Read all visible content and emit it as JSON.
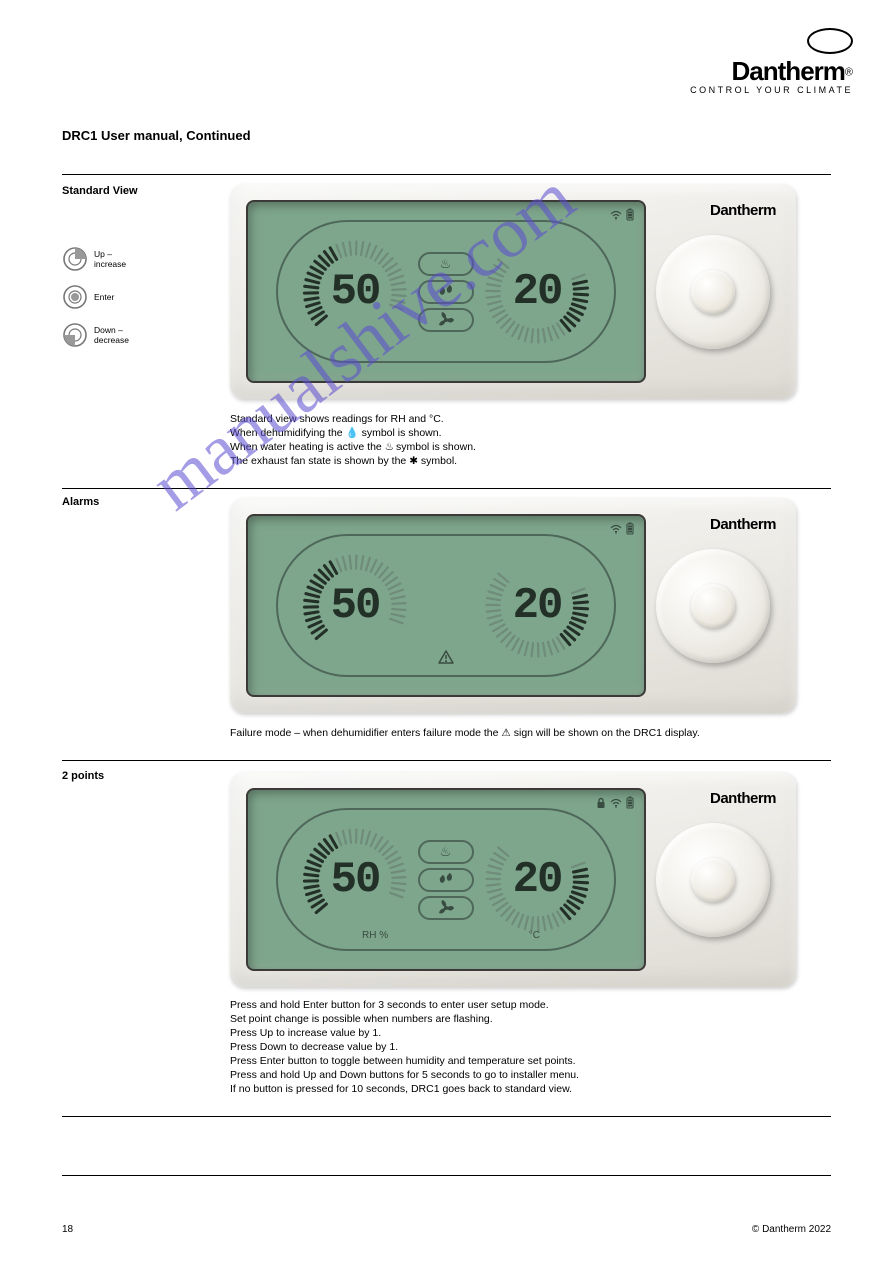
{
  "brand": {
    "word": "Dantherm",
    "tag": "CONTROL YOUR CLIMATE",
    "reg": "®"
  },
  "title": "DRC1 User manual, Continued",
  "watermark": "manualshive.com",
  "sections": {
    "s1": {
      "label": "Standard View",
      "icons": {
        "up": "Up – increase",
        "enter": "Enter",
        "down": "Down – decrease"
      },
      "device": {
        "brand": "Dantherm",
        "left_val": "50",
        "right_val": "20",
        "show_heat": true,
        "show_drop": true,
        "show_fan": true,
        "show_wifi": true,
        "show_batt": true
      },
      "p1": "Standard view shows readings for RH and °C.",
      "p2a": "When dehumidifying the ",
      "p2b": " symbol is shown.",
      "p3a": "When water heating is active the ",
      "p3b": " symbol is shown.",
      "p4a": "The exhaust fan state is shown by the ",
      "p4b": " symbol."
    },
    "s2": {
      "label": "Alarms",
      "device": {
        "brand": "Dantherm",
        "left_val": "50",
        "right_val": "20",
        "show_warn": true,
        "show_wifi": true,
        "show_batt": true
      },
      "p1a": "Failure mode – when dehumidifier enters failure mode the ",
      "p1b": " sign will be shown on the DRC1 display."
    },
    "s3": {
      "label": "2 points",
      "device": {
        "brand": "Dantherm",
        "left_val": "50",
        "right_val": "20",
        "show_heat": true,
        "show_drop": true,
        "show_fan": true,
        "show_lock": true,
        "show_wifi": true,
        "show_batt": true,
        "unit_rh": "RH %",
        "unit_c": "°C"
      },
      "p": "Press and hold Enter button for 3 seconds to enter user setup mode.\nSet point change is possible when numbers are flashing.\nPress Up to increase value by 1.\nPress Down to decrease value by 1.\nPress Enter button to toggle between humidity and temperature set points.\nPress and hold Up and Down buttons for 5 seconds to go to installer menu.\nIf no button is pressed for 10 seconds, DRC1 goes back to standard view."
    }
  },
  "footer": {
    "pageno": "18",
    "rights": "© Dantherm 2022"
  },
  "colors": {
    "seg_off": "#6f8b7a",
    "seg_on": "#233028",
    "lcdline": "#4e675a"
  }
}
